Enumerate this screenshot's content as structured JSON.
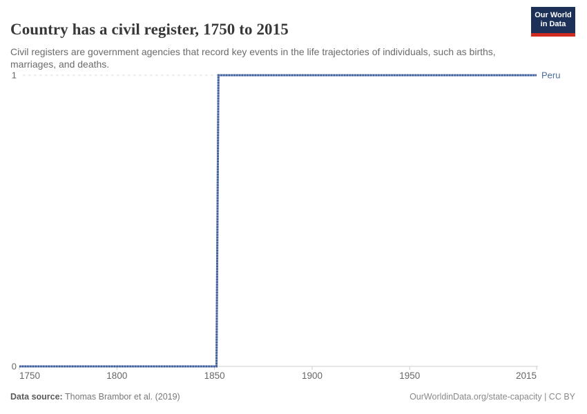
{
  "header": {
    "title": "Country has a civil register, 1750 to 2015",
    "subtitle": "Civil registers are government agencies that record key events in the life trajectories of individuals, such as births, marriages, and deaths.",
    "logo": {
      "line1": "Our World",
      "line2": "in Data",
      "bg_color": "#1d3158",
      "accent_color": "#cf2b1e"
    }
  },
  "chart_data": {
    "type": "line",
    "title": "Country has a civil register, 1750 to 2015",
    "xlabel": "",
    "ylabel": "",
    "xlim": [
      1750,
      2015
    ],
    "ylim": [
      0,
      1
    ],
    "x_ticks": [
      "1750",
      "1800",
      "1850",
      "1900",
      "1950",
      "2015"
    ],
    "x_tick_values": [
      1750,
      1800,
      1850,
      1900,
      1950,
      2015
    ],
    "y_ticks": [
      "0",
      "1"
    ],
    "y_tick_values": [
      0,
      1
    ],
    "grid": "dashed horizontal gridline at y=1, solid axis line at y=0",
    "legend_position": "label at end of line",
    "series": [
      {
        "name": "Peru",
        "color": "#4C6A9C",
        "marker_color": "#3E5D98",
        "line_base_color": "#7E93BE",
        "points": [
          [
            1750,
            0
          ],
          [
            1851,
            0
          ],
          [
            1852,
            1
          ],
          [
            2015,
            1
          ]
        ]
      }
    ],
    "axis_color": "#cccccc",
    "gridline_color": "#dddddd",
    "tick_label_color": "#666666"
  },
  "footer": {
    "source_label": "Data source:",
    "source_value": "Thomas Brambor et al. (2019)",
    "license": "OurWorldinData.org/state-capacity | CC BY"
  }
}
